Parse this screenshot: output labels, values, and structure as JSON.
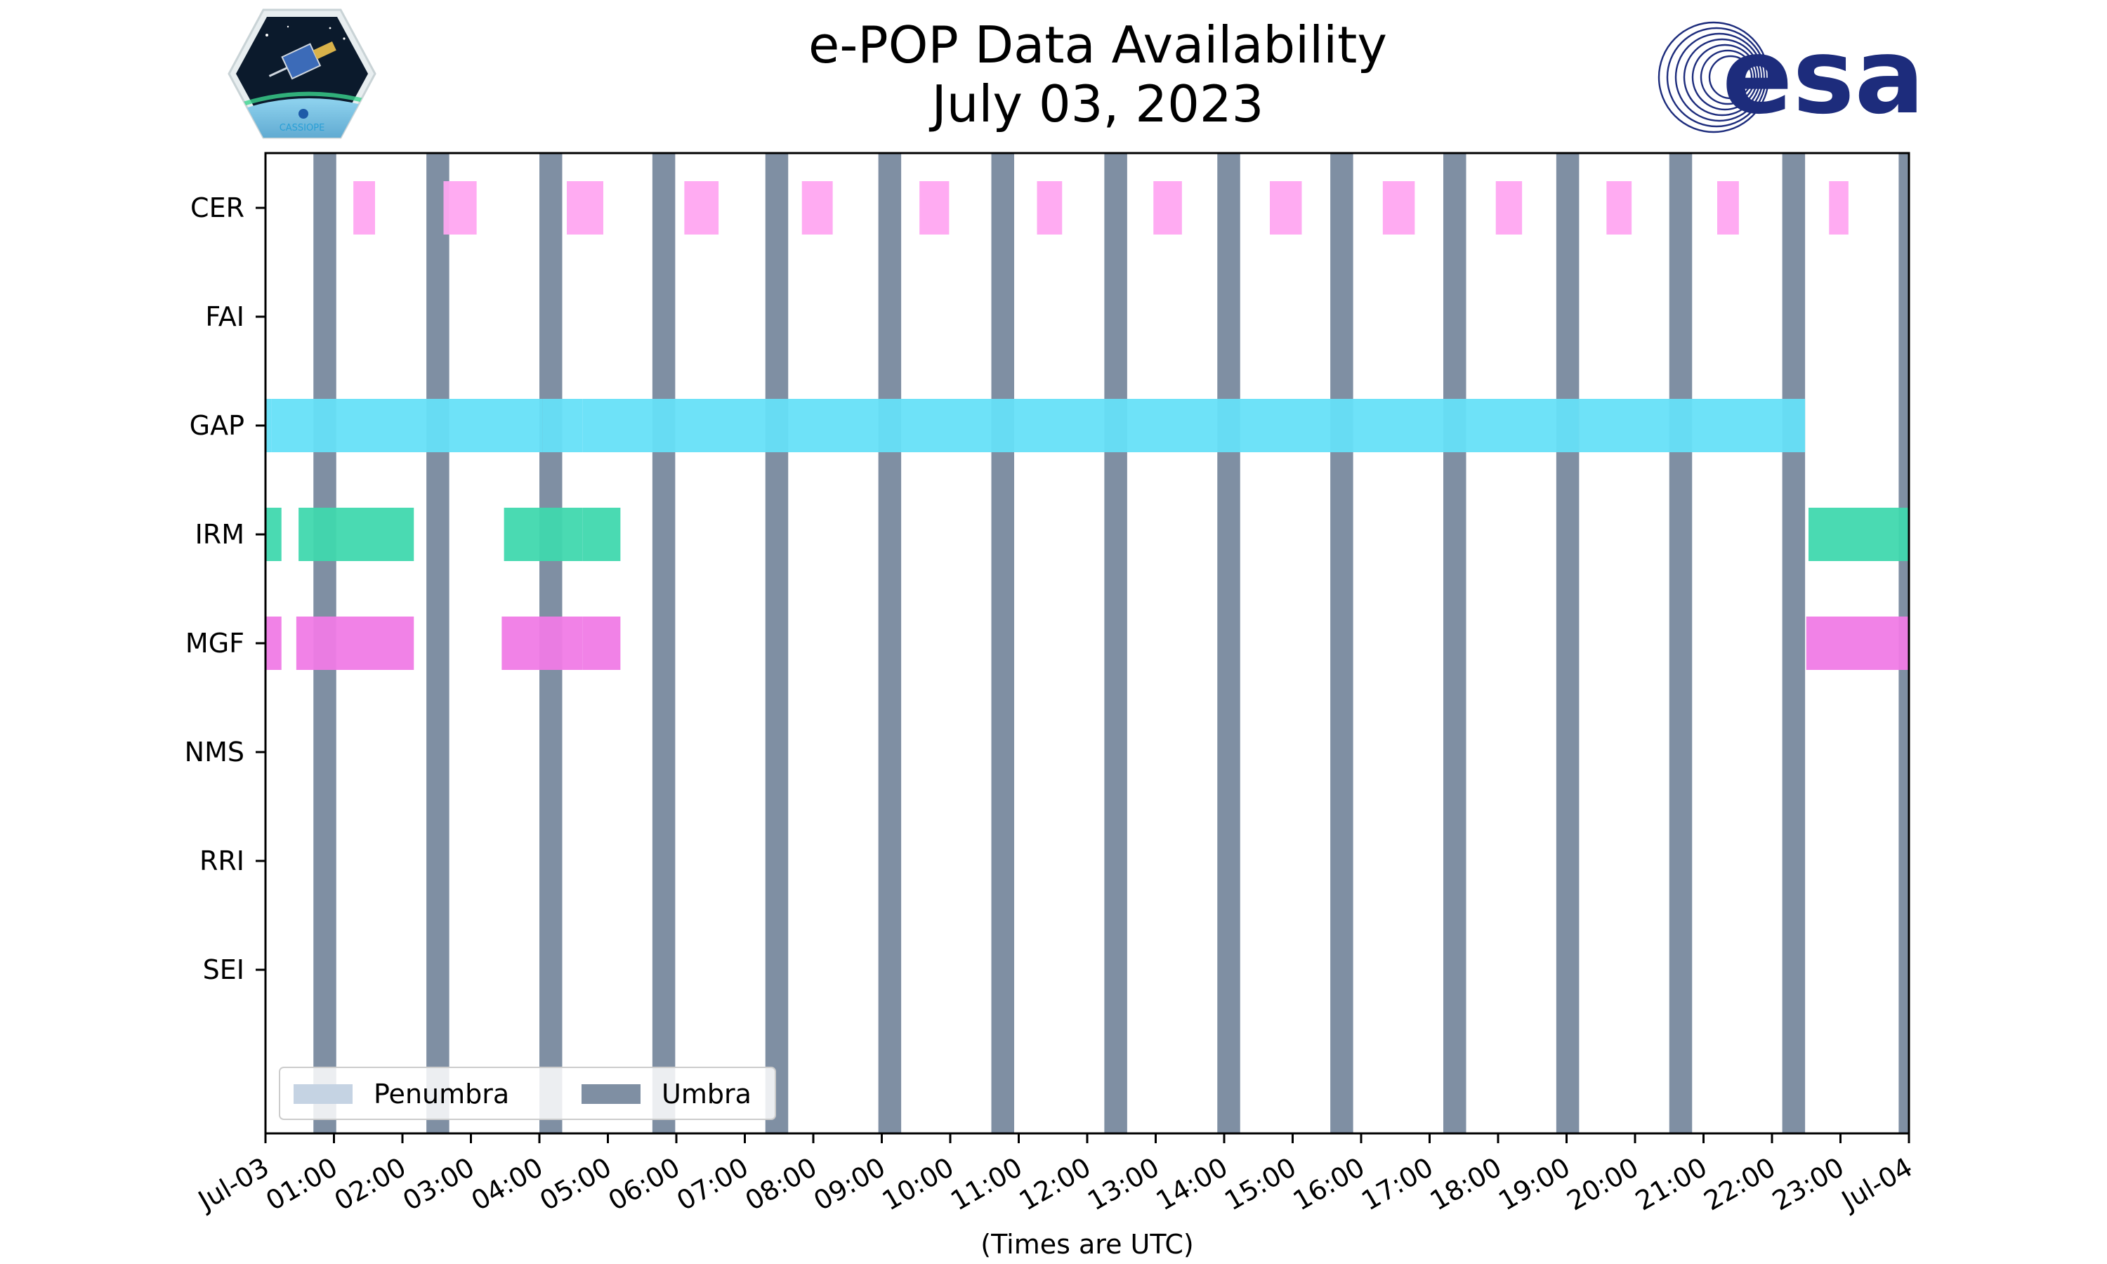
{
  "header": {
    "title": "e-POP Data Availability",
    "subtitle": "July 03, 2023",
    "left_logo": "CASSIOPE",
    "right_logo": "esa"
  },
  "colors": {
    "umbra": "#7f8fa3",
    "penumbra": "#c5d3e3",
    "CER": "#ffa7f1",
    "GAP": "#66e0f8",
    "IRM": "#40d8ae",
    "MGF": "#f07be6",
    "esa_blue": "#1d2c7c"
  },
  "chart_data": {
    "type": "timeline",
    "xlabel": "(Times are UTC)",
    "x_range": [
      "2023-07-03 00:00",
      "2023-07-04 00:00"
    ],
    "x_ticks": [
      "Jul-03",
      "01:00",
      "02:00",
      "03:00",
      "04:00",
      "05:00",
      "06:00",
      "07:00",
      "08:00",
      "09:00",
      "10:00",
      "11:00",
      "12:00",
      "13:00",
      "14:00",
      "15:00",
      "16:00",
      "17:00",
      "18:00",
      "19:00",
      "20:00",
      "21:00",
      "22:00",
      "23:00",
      "Jul-04"
    ],
    "categories": [
      "CER",
      "FAI",
      "GAP",
      "IRM",
      "MGF",
      "NMS",
      "RRI",
      "SEI"
    ],
    "legend": {
      "location": "lower-left",
      "entries": [
        "Penumbra",
        "Umbra"
      ]
    },
    "umbra": [
      [
        "00:42",
        "01:02"
      ],
      [
        "02:21",
        "02:41"
      ],
      [
        "04:00",
        "04:20"
      ],
      [
        "05:39",
        "05:59"
      ],
      [
        "07:18",
        "07:38"
      ],
      [
        "08:57",
        "09:17"
      ],
      [
        "10:36",
        "10:56"
      ],
      [
        "12:15",
        "12:35"
      ],
      [
        "13:54",
        "14:14"
      ],
      [
        "15:33",
        "15:53"
      ],
      [
        "17:12",
        "17:32"
      ],
      [
        "18:51",
        "19:11"
      ],
      [
        "20:30",
        "20:50"
      ],
      [
        "22:09",
        "22:29"
      ],
      [
        "23:51",
        "24:00"
      ]
    ],
    "series": [
      {
        "name": "CER",
        "intervals": [
          [
            "01:17",
            "01:36"
          ],
          [
            "02:36",
            "03:05"
          ],
          [
            "04:24",
            "04:56"
          ],
          [
            "06:07",
            "06:37"
          ],
          [
            "07:50",
            "08:17"
          ],
          [
            "09:33",
            "09:59"
          ],
          [
            "11:16",
            "11:38"
          ],
          [
            "12:58",
            "13:23"
          ],
          [
            "14:40",
            "15:08"
          ],
          [
            "16:19",
            "16:47"
          ],
          [
            "17:58",
            "18:21"
          ],
          [
            "19:35",
            "19:57"
          ],
          [
            "21:12",
            "21:31"
          ],
          [
            "22:50",
            "23:07"
          ]
        ]
      },
      {
        "name": "FAI",
        "intervals": []
      },
      {
        "name": "GAP",
        "intervals": [
          [
            "00:00",
            "00:05"
          ],
          [
            "00:05",
            "04:03"
          ],
          [
            "04:03",
            "04:38"
          ],
          [
            "04:38",
            "19:11"
          ],
          [
            "19:11",
            "22:29"
          ]
        ]
      },
      {
        "name": "IRM",
        "intervals": [
          [
            "00:00",
            "00:14"
          ],
          [
            "00:29",
            "02:10"
          ],
          [
            "03:29",
            "04:38"
          ],
          [
            "04:38",
            "05:11"
          ],
          [
            "22:32",
            "24:00"
          ]
        ]
      },
      {
        "name": "MGF",
        "intervals": [
          [
            "00:00",
            "00:14"
          ],
          [
            "00:27",
            "02:10"
          ],
          [
            "03:27",
            "04:38"
          ],
          [
            "04:38",
            "05:11"
          ],
          [
            "22:30",
            "24:00"
          ]
        ]
      },
      {
        "name": "NMS",
        "intervals": []
      },
      {
        "name": "RRI",
        "intervals": []
      },
      {
        "name": "SEI",
        "intervals": []
      }
    ]
  }
}
